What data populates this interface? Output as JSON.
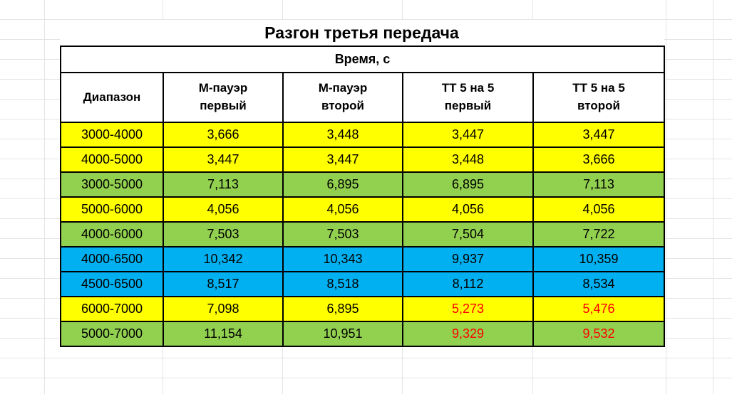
{
  "title": "Разгон третья передача",
  "table": {
    "time_header": "Время, с",
    "columns": [
      {
        "line1": "Диапазон",
        "line2": ""
      },
      {
        "line1": "М-пауэр",
        "line2": "первый"
      },
      {
        "line1": "М-пауэр",
        "line2": "второй"
      },
      {
        "line1": "ТТ 5 на 5",
        "line2": "первый"
      },
      {
        "line1": "ТТ 5 на 5",
        "line2": "второй"
      }
    ],
    "rows": [
      {
        "range": "3000-4000",
        "fill": "yellow",
        "values": [
          {
            "text": "3,666"
          },
          {
            "text": "3,448"
          },
          {
            "text": "3,447"
          },
          {
            "text": "3,447"
          }
        ]
      },
      {
        "range": "4000-5000",
        "fill": "yellow",
        "values": [
          {
            "text": "3,447"
          },
          {
            "text": "3,447"
          },
          {
            "text": "3,448"
          },
          {
            "text": "3,666"
          }
        ]
      },
      {
        "range": "3000-5000",
        "fill": "green",
        "values": [
          {
            "text": "7,113"
          },
          {
            "text": "6,895"
          },
          {
            "text": "6,895"
          },
          {
            "text": "7,113"
          }
        ]
      },
      {
        "range": "5000-6000",
        "fill": "yellow",
        "values": [
          {
            "text": "4,056"
          },
          {
            "text": "4,056"
          },
          {
            "text": "4,056"
          },
          {
            "text": "4,056"
          }
        ]
      },
      {
        "range": "4000-6000",
        "fill": "green",
        "values": [
          {
            "text": "7,503"
          },
          {
            "text": "7,503"
          },
          {
            "text": "7,504"
          },
          {
            "text": "7,722"
          }
        ]
      },
      {
        "range": "4000-6500",
        "fill": "blue",
        "values": [
          {
            "text": "10,342"
          },
          {
            "text": "10,343"
          },
          {
            "text": "9,937"
          },
          {
            "text": "10,359"
          }
        ]
      },
      {
        "range": "4500-6500",
        "fill": "blue",
        "values": [
          {
            "text": "8,517"
          },
          {
            "text": "8,518"
          },
          {
            "text": "8,112"
          },
          {
            "text": "8,534"
          }
        ]
      },
      {
        "range": "6000-7000",
        "fill": "yellow",
        "values": [
          {
            "text": "7,098"
          },
          {
            "text": "6,895"
          },
          {
            "text": "5,273",
            "red": true
          },
          {
            "text": "5,476",
            "red": true
          }
        ]
      },
      {
        "range": "5000-7000",
        "fill": "green",
        "values": [
          {
            "text": "11,154"
          },
          {
            "text": "10,951"
          },
          {
            "text": "9,329",
            "red": true
          },
          {
            "text": "9,532",
            "red": true
          }
        ]
      }
    ]
  },
  "colors": {
    "yellow": "#FFFF00",
    "green": "#92D050",
    "blue": "#00B0F0",
    "red_text": "#FF0000",
    "border": "#000000",
    "gridline": "#E4E4E4"
  }
}
